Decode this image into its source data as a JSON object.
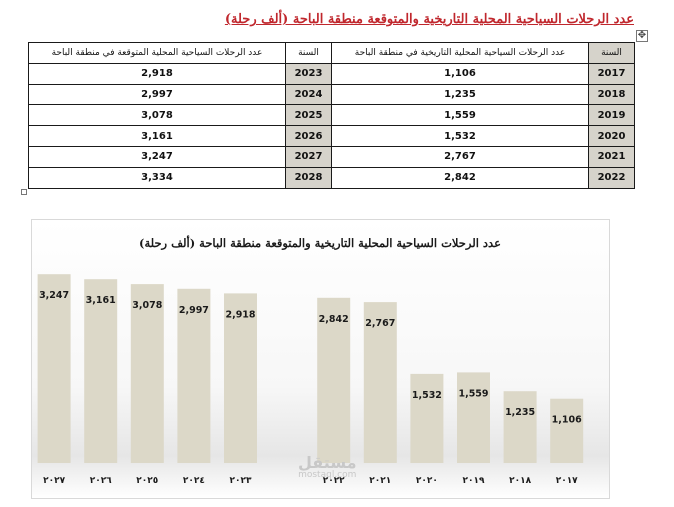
{
  "document": {
    "title": "عدد الرحلات السياحية المحلية التاريخية والمتوقعة منطقة الباحة (ألف رحلة)"
  },
  "table": {
    "headers": [
      "السنة",
      "عدد الرحلات السياحية المحلية التاريخية في منطقة الباحة",
      "السنة",
      "عدد الرحلات السياحية المحلية المتوقعة في منطقة الباحة"
    ],
    "rows": [
      {
        "hist_year": "2017",
        "hist_value": "1,106",
        "proj_year": "2023",
        "proj_value": "2,918"
      },
      {
        "hist_year": "2018",
        "hist_value": "1,235",
        "proj_year": "2024",
        "proj_value": "2,997"
      },
      {
        "hist_year": "2019",
        "hist_value": "1,559",
        "proj_year": "2025",
        "proj_value": "3,078"
      },
      {
        "hist_year": "2020",
        "hist_value": "1,532",
        "proj_year": "2026",
        "proj_value": "3,161"
      },
      {
        "hist_year": "2021",
        "hist_value": "2,767",
        "proj_year": "2027",
        "proj_value": "3,247"
      },
      {
        "hist_year": "2022",
        "hist_value": "2,842",
        "proj_year": "2028",
        "proj_value": "3,334"
      }
    ]
  },
  "chart_data": {
    "type": "bar",
    "title": "عدد الرحلات السياحية المحلية التاريخية والمتوقعة منطقة الباحة (ألف رحلة)",
    "direction": "right-to-left",
    "categories": [
      "٢٠١٧",
      "٢٠١٨",
      "٢٠١٩",
      "٢٠٢٠",
      "٢٠٢١",
      "٢٠٢٢",
      "",
      "٢٠٢٣",
      "٢٠٢٤",
      "٢٠٢٥",
      "٢٠٢٦",
      "٢٠٢٧"
    ],
    "values": [
      1106,
      1235,
      1559,
      1532,
      2767,
      2842,
      null,
      2918,
      2997,
      3078,
      3161,
      3247
    ],
    "data_labels": [
      "1,106",
      "1,235",
      "1,559",
      "1,532",
      "2,767",
      "2,842",
      "",
      "2,918",
      "2,997",
      "3,078",
      "3,161",
      "3,247"
    ],
    "ylim": [
      0,
      3750
    ],
    "grid": false,
    "legend": "none",
    "bar_color": "#dcd8c8"
  },
  "watermark": {
    "logo_text": "مستقل",
    "domain_text": "mostaql.com"
  }
}
